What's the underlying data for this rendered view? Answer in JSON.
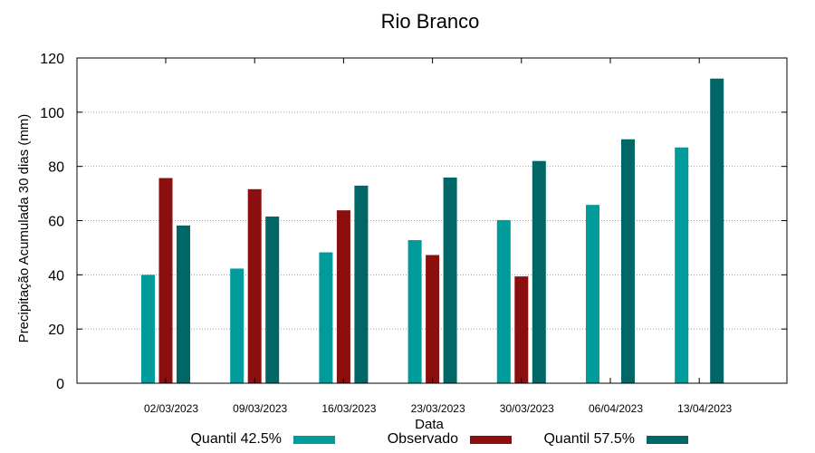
{
  "chart_data": {
    "type": "bar",
    "title": "Rio Branco",
    "xlabel": "Data",
    "ylabel": "Precipitação Acumulada 30 dias (mm)",
    "ylim": [
      0,
      120
    ],
    "yticks": [
      0,
      20,
      40,
      60,
      80,
      100,
      120
    ],
    "grid": true,
    "legend_position": "bottom",
    "categories": [
      "02/03/2023",
      "09/03/2023",
      "16/03/2023",
      "23/03/2023",
      "30/03/2023",
      "06/04/2023",
      "13/04/2023"
    ],
    "series": [
      {
        "name": "Quantil 42.5%",
        "color": "#009b9b",
        "values": [
          40,
          42.3,
          48.3,
          52.8,
          60.2,
          65.8,
          87.0
        ]
      },
      {
        "name": "Observado",
        "color": "#8b0f0f",
        "values": [
          75.7,
          71.6,
          63.8,
          47.3,
          39.4,
          null,
          null
        ]
      },
      {
        "name": "Quantil 57.5%",
        "color": "#006666",
        "values": [
          58.2,
          61.5,
          72.9,
          75.9,
          82.0,
          90.0,
          112.4
        ]
      }
    ]
  }
}
